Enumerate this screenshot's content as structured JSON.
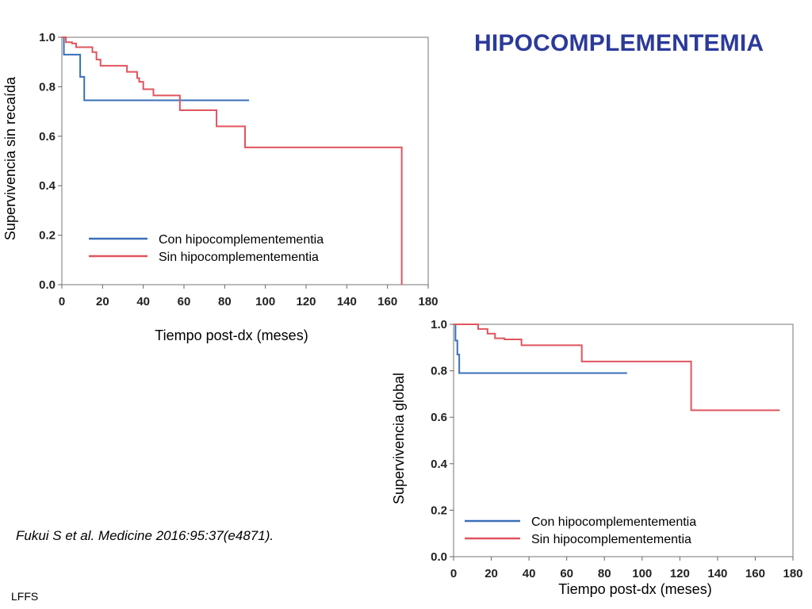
{
  "slide": {
    "title": "HIPOCOMPLEMENTEMIA",
    "citation": "Fukui S et al. Medicine 2016:95:37(e4871).",
    "footer": "LFFS"
  },
  "colors": {
    "title": "#2b3a9a",
    "con_series": "#3a6fb8",
    "sin_series": "#e0555e"
  },
  "chart_data": [
    {
      "type": "line",
      "step": true,
      "xlabel": "Tiempo post-dx (meses)",
      "ylabel": "Supervivencia sin recaída",
      "xlim": [
        0,
        180
      ],
      "ylim": [
        0,
        1.0
      ],
      "x_ticks": [
        0,
        20,
        40,
        60,
        80,
        100,
        120,
        140,
        160,
        180
      ],
      "x_tick_labels": [
        "0",
        "20",
        "40",
        "60",
        "80",
        "100",
        "120",
        "140",
        "160",
        "180"
      ],
      "y_ticks": [
        0,
        0.2,
        0.4,
        0.6,
        0.8,
        1.0
      ],
      "y_tick_labels": [
        "0.0",
        "0.2",
        "0.4",
        "0.6",
        "0.8",
        "1.0"
      ],
      "grid": false,
      "legend_position": "bottom-left",
      "series": [
        {
          "name": "Con hipocomplementementia",
          "color": "#3a6fb8",
          "x": [
            0,
            1,
            9,
            11,
            92
          ],
          "y": [
            1.0,
            0.93,
            0.84,
            0.745,
            0.745
          ]
        },
        {
          "name": "Sin hipocomplementementia",
          "color": "#e0555e",
          "x": [
            0,
            2,
            5,
            7,
            12,
            15,
            17,
            19,
            29,
            32,
            36,
            37,
            38,
            40,
            42,
            45,
            57,
            58,
            75,
            76,
            89,
            90,
            166,
            167
          ],
          "y": [
            1.0,
            0.98,
            0.975,
            0.96,
            0.96,
            0.94,
            0.91,
            0.885,
            0.885,
            0.86,
            0.86,
            0.835,
            0.82,
            0.79,
            0.79,
            0.765,
            0.765,
            0.705,
            0.705,
            0.64,
            0.64,
            0.555,
            0.555,
            0.0
          ]
        }
      ]
    },
    {
      "type": "line",
      "step": true,
      "xlabel": "Tiempo post-dx (meses)",
      "ylabel": "Supervivencia global",
      "xlim": [
        0,
        180
      ],
      "ylim": [
        0,
        1.0
      ],
      "x_ticks": [
        0,
        20,
        40,
        60,
        80,
        100,
        120,
        140,
        160,
        180
      ],
      "x_tick_labels": [
        "0",
        "20",
        "40",
        "60",
        "80",
        "100",
        "120",
        "140",
        "160",
        "180"
      ],
      "y_ticks": [
        0,
        0.2,
        0.4,
        0.6,
        0.8,
        1.0
      ],
      "y_tick_labels": [
        "0.0",
        "0.2",
        "0.4",
        "0.6",
        "0.8",
        "1.0"
      ],
      "grid": false,
      "legend_position": "bottom-left",
      "series": [
        {
          "name": "Con hipocomplementementia",
          "color": "#3a6fb8",
          "x": [
            0,
            1,
            2,
            3,
            92
          ],
          "y": [
            1.0,
            0.93,
            0.87,
            0.79,
            0.79
          ]
        },
        {
          "name": "Sin hipocomplementementia",
          "color": "#e0555e",
          "x": [
            0,
            2,
            13,
            18,
            22,
            27,
            36,
            47,
            68,
            72,
            125,
            126,
            173
          ],
          "y": [
            1.0,
            1.0,
            0.98,
            0.96,
            0.94,
            0.935,
            0.91,
            0.91,
            0.84,
            0.84,
            0.84,
            0.63,
            0.63
          ]
        }
      ]
    }
  ]
}
